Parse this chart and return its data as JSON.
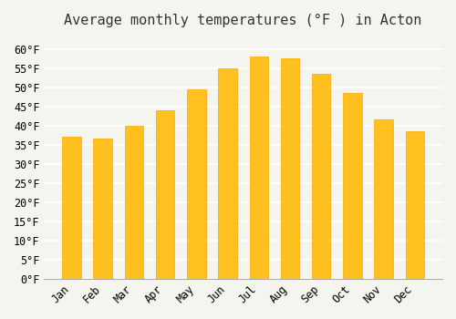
{
  "title": "Average monthly temperatures (°F ) in Acton",
  "months": [
    "Jan",
    "Feb",
    "Mar",
    "Apr",
    "May",
    "Jun",
    "Jul",
    "Aug",
    "Sep",
    "Oct",
    "Nov",
    "Dec"
  ],
  "values": [
    37,
    36.5,
    40,
    44,
    49.5,
    55,
    58,
    57.5,
    53.5,
    48.5,
    41.5,
    38.5
  ],
  "bar_color_main": "#FFC020",
  "bar_color_edge": "#FFA500",
  "background_color": "#F5F5F0",
  "grid_color": "#FFFFFF",
  "ylim": [
    0,
    63
  ],
  "yticks": [
    0,
    5,
    10,
    15,
    20,
    25,
    30,
    35,
    40,
    45,
    50,
    55,
    60
  ],
  "title_fontsize": 11,
  "tick_fontsize": 8.5
}
